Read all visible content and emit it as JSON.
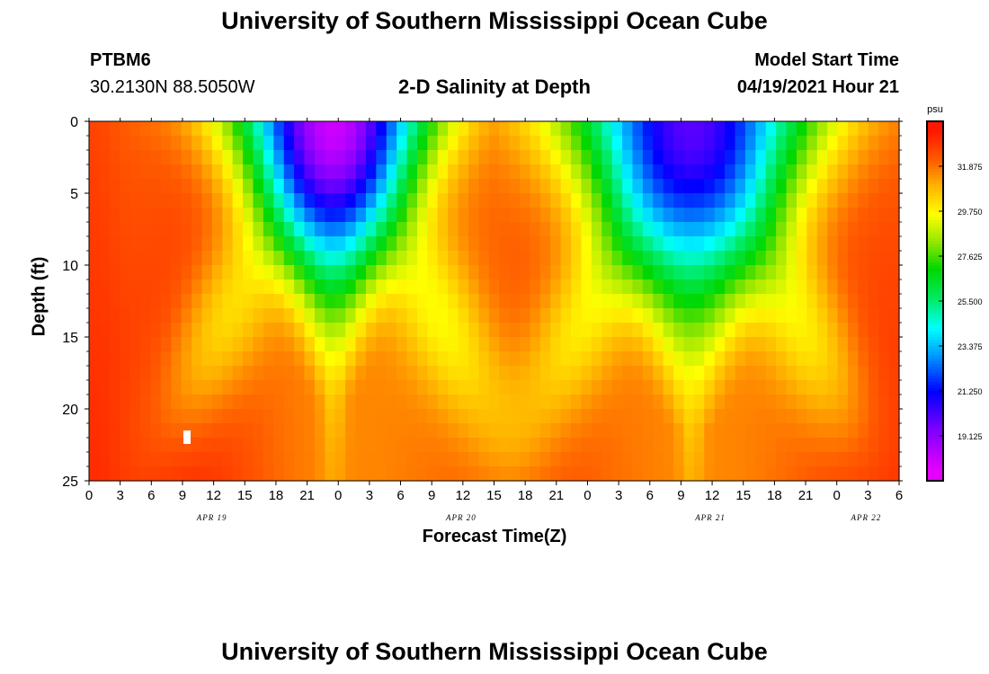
{
  "top_title": "University of Southern Mississippi Ocean Cube",
  "bottom_title": "University of Southern Mississippi Ocean Cube",
  "station": {
    "id": "PTBM6",
    "coords": "30.2130N  88.5050W"
  },
  "model": {
    "label": "Model Start Time",
    "time": "04/19/2021 Hour 21"
  },
  "chart_data": {
    "type": "heatmap",
    "title": "2-D Salinity at Depth",
    "xlabel": "Forecast Time(Z)",
    "ylabel": "Depth (ft)",
    "x_tick_labels": [
      "0",
      "3",
      "6",
      "9",
      "12",
      "15",
      "18",
      "21",
      "0",
      "3",
      "6",
      "9",
      "12",
      "15",
      "18",
      "21",
      "0",
      "3",
      "6",
      "9",
      "12",
      "15",
      "18",
      "21",
      "0",
      "3",
      "6"
    ],
    "date_labels": [
      {
        "text": "APR 19",
        "tick_index": 4
      },
      {
        "text": "APR 20",
        "tick_index": 12
      },
      {
        "text": "APR 21",
        "tick_index": 20
      },
      {
        "text": "APR 22",
        "tick_index": 25
      }
    ],
    "y_ticks": [
      0,
      5,
      10,
      15,
      20,
      25
    ],
    "ylim": [
      25,
      0
    ],
    "xlim_hours": [
      0,
      78
    ],
    "colorbar": {
      "unit": "psu",
      "tick_labels": [
        "31.875",
        "29.750",
        "27.625",
        "25.500",
        "23.375",
        "21.250",
        "19.125"
      ],
      "range": [
        17.0,
        34.0
      ]
    },
    "fresh_cores": [
      {
        "center_hour": 23.5,
        "min_psu": 18.2,
        "max_depth_ft": 12.0,
        "half_width_h": 7.5
      },
      {
        "center_hour": 58.0,
        "min_psu": 20.2,
        "max_depth_ft": 13.5,
        "half_width_h": 10.0
      }
    ],
    "saline_cores": [
      {
        "center_hour": 8.0,
        "max_psu": 33.3
      },
      {
        "center_hour": 42.0,
        "max_psu": 32.6
      },
      {
        "center_hour": 77.0,
        "max_psu": 33.2
      }
    ]
  }
}
